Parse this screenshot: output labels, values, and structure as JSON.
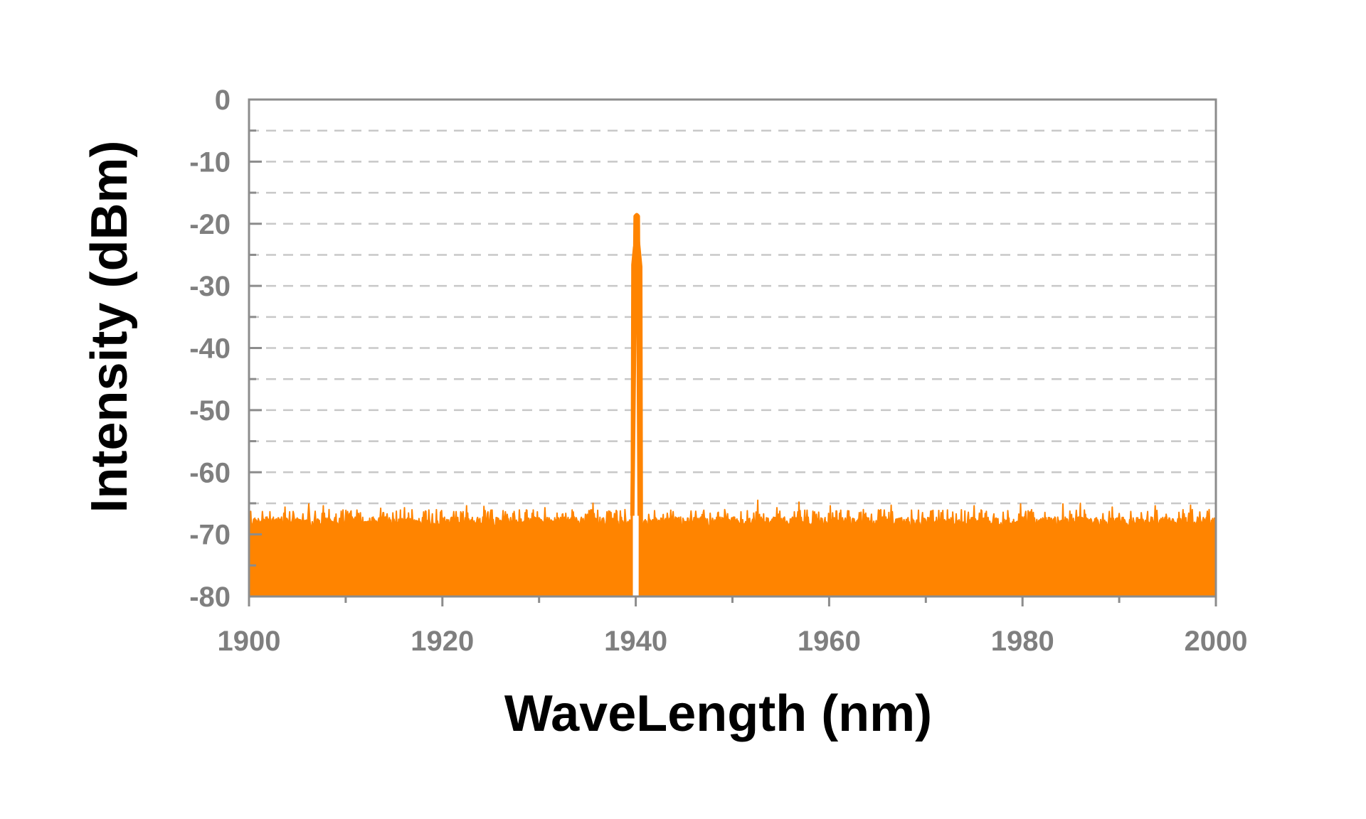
{
  "chart_data": {
    "type": "area",
    "title": "",
    "xlabel": "WaveLength (nm)",
    "ylabel": "Intensity (dBm)",
    "xlim": [
      1900,
      2000
    ],
    "ylim": [
      -80,
      0
    ],
    "x_ticks": [
      1900,
      1920,
      1940,
      1960,
      1980,
      2000
    ],
    "x_minor_ticks": [
      1910,
      1930,
      1950,
      1970,
      1990
    ],
    "y_ticks": [
      0,
      -10,
      -20,
      -30,
      -40,
      -50,
      -60,
      -70,
      -80
    ],
    "y_minor_ticks": [
      -5,
      -15,
      -25,
      -35,
      -45,
      -55,
      -65,
      -75
    ],
    "x_tick_labels": [
      "1900",
      "1920",
      "1940",
      "1960",
      "1980",
      "2000"
    ],
    "y_tick_labels": [
      "0",
      "-10",
      "-20",
      "-30",
      "-40",
      "-50",
      "-60",
      "-70",
      "-80"
    ],
    "grid": {
      "y_major": true,
      "y_minor": true,
      "style": "dashed"
    },
    "legend": "none",
    "series": [
      {
        "color": "#ff8400",
        "noise_floor_dbm": -67,
        "noise_peaks_dbm": [
          [
            1900.2,
            -66.3
          ],
          [
            1903.7,
            -65.6
          ],
          [
            1906.2,
            -65.1
          ],
          [
            1907.7,
            -65.4
          ],
          [
            1913.6,
            -65.8
          ],
          [
            1916.1,
            -65.7
          ],
          [
            1922.5,
            -65.4
          ],
          [
            1924.3,
            -65.5
          ],
          [
            1930.6,
            -65.7
          ],
          [
            1935.6,
            -65.0
          ],
          [
            1938.9,
            -66.0
          ],
          [
            1952.6,
            -64.5
          ],
          [
            1954.6,
            -65.7
          ],
          [
            1956.9,
            -64.8
          ],
          [
            1960.1,
            -65.4
          ],
          [
            1966.4,
            -65.3
          ],
          [
            1975.0,
            -65.4
          ],
          [
            1979.8,
            -65.1
          ],
          [
            1984.2,
            -65.1
          ],
          [
            1986.0,
            -65.0
          ],
          [
            1989.3,
            -65.6
          ],
          [
            1993.7,
            -65.4
          ],
          [
            1997.4,
            -65.3
          ],
          [
            1999.3,
            -66.0
          ]
        ],
        "peak": {
          "x": 1940.1,
          "y": -18.6
        },
        "gap_x": [
          1939.7,
          1940.3
        ]
      }
    ]
  }
}
